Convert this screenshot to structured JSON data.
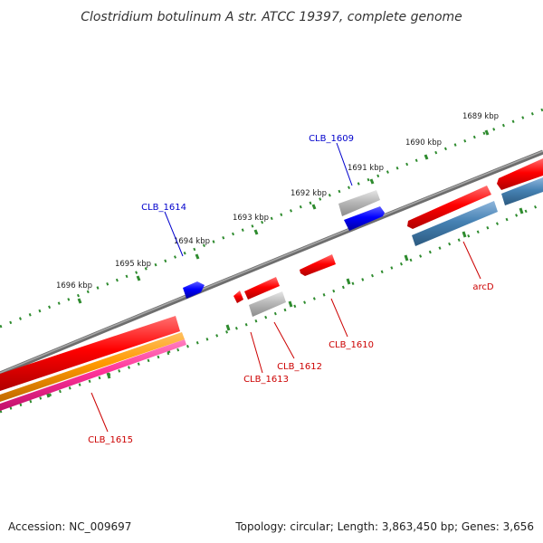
{
  "title": "Clostridium botulinum A str. ATCC 19397, complete genome",
  "footer": {
    "accession": "Accession: NC_009697",
    "summary": "Topology: circular; Length: 3,863,450 bp; Genes: 3,656"
  },
  "ticks": [
    {
      "label": "1689 kbp"
    },
    {
      "label": "1690 kbp"
    },
    {
      "label": "1691 kbp"
    },
    {
      "label": "1692 kbp"
    },
    {
      "label": "1693 kbp"
    },
    {
      "label": "1694 kbp"
    },
    {
      "label": "1695 kbp"
    },
    {
      "label": "1696 kbp"
    }
  ],
  "genes": [
    {
      "name": "CLB_1609",
      "color": "#0000cc"
    },
    {
      "name": "CLB_1614",
      "color": "#0000cc"
    },
    {
      "name": "CLB_1610",
      "color": "#cc0000"
    },
    {
      "name": "CLB_1612",
      "color": "#cc0000"
    },
    {
      "name": "CLB_1613",
      "color": "#cc0000"
    },
    {
      "name": "CLB_1615",
      "color": "#cc0000"
    },
    {
      "name": "arcD",
      "color": "#cc0000"
    }
  ],
  "colors": {
    "backbone": "#7a7a7a",
    "tick": "#2e8b2e",
    "red": "#ff0000",
    "blue": "#0000ff",
    "grey": "#b4b4b4",
    "steel": "#4682b4",
    "orange": "#ff9900",
    "pink": "#ff3399"
  }
}
